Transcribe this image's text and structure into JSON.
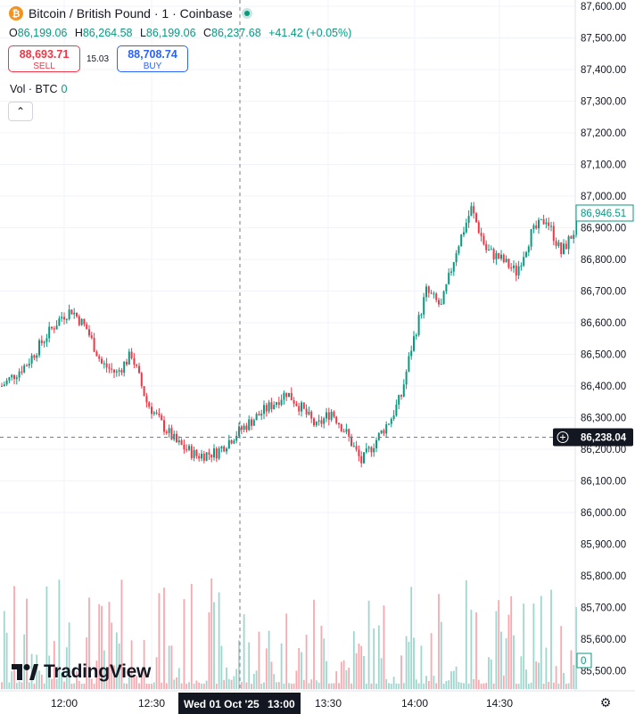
{
  "header": {
    "coin_glyph": "₿",
    "title": "Bitcoin / British Pound · 1 · Coinbase",
    "ohlc": [
      {
        "key": "O",
        "value": "86,199.06"
      },
      {
        "key": "H",
        "value": "86,264.58"
      },
      {
        "key": "L",
        "value": "86,199.06"
      },
      {
        "key": "C",
        "value": "86,237.68"
      }
    ],
    "change": "+41.42 (+0.05%)"
  },
  "trade": {
    "sell_price": "88,693.71",
    "sell_label": "SELL",
    "spread": "15.03",
    "buy_price": "88,708.74",
    "buy_label": "BUY"
  },
  "volume": {
    "label": "Vol · BTC",
    "value": "0",
    "axis_label": "0"
  },
  "logo": "TradingView",
  "crosshair_date": "Wed 01 Oct '25",
  "crosshair_time": "13:00",
  "colors": {
    "up": "#089981",
    "down": "#f23645",
    "up_vol": "#9fd6cd",
    "down_vol": "#f7a9af",
    "grid": "#f0f3fa",
    "axis_text": "#131722"
  },
  "chart_data": {
    "type": "candlestick",
    "y_ticks": [
      86000,
      86100,
      86200,
      86300,
      86400,
      86500,
      86600,
      86700,
      86800,
      86900,
      87000,
      87100,
      87200,
      87300,
      87400,
      87500,
      87600
    ],
    "y_tick_labels": [
      "86,000.00",
      "86,100.00",
      "86,200.00",
      "86,300.00",
      "86,400.00",
      "86,500.00",
      "86,600.00",
      "86,700.00",
      "86,800.00",
      "86,900.00",
      "87,000.00",
      "87,100.00",
      "87,200.00",
      "87,300.00",
      "87,400.00",
      "87,500.00",
      "87,600.00"
    ],
    "extra_y_labels": [
      "85,900.00",
      "85,800.00",
      "85,700.00",
      "85,600.00",
      "85,500.00"
    ],
    "x_tick_labels": [
      "12:00",
      "12:30",
      "13:30",
      "14:00",
      "14:30"
    ],
    "last_price": 86946.51,
    "last_price_label": "86,946.51",
    "crosshair_price": 86238.04,
    "crosshair_price_label": "86,238.04",
    "trend_control_points": [
      [
        0,
        86400
      ],
      [
        10,
        86470
      ],
      [
        18,
        86560
      ],
      [
        24,
        86620
      ],
      [
        28,
        86640
      ],
      [
        34,
        86580
      ],
      [
        40,
        86470
      ],
      [
        46,
        86440
      ],
      [
        52,
        86500
      ],
      [
        58,
        86350
      ],
      [
        64,
        86280
      ],
      [
        70,
        86220
      ],
      [
        78,
        86180
      ],
      [
        86,
        86190
      ],
      [
        94,
        86250
      ],
      [
        100,
        86290
      ],
      [
        108,
        86340
      ],
      [
        114,
        86380
      ],
      [
        120,
        86330
      ],
      [
        126,
        86270
      ],
      [
        132,
        86320
      ],
      [
        138,
        86250
      ],
      [
        144,
        86160
      ],
      [
        150,
        86230
      ],
      [
        156,
        86300
      ],
      [
        160,
        86370
      ],
      [
        164,
        86520
      ],
      [
        170,
        86700
      ],
      [
        176,
        86650
      ],
      [
        182,
        86830
      ],
      [
        188,
        86960
      ],
      [
        194,
        86830
      ],
      [
        200,
        86800
      ],
      [
        206,
        86760
      ],
      [
        212,
        86880
      ],
      [
        218,
        86930
      ],
      [
        224,
        86820
      ],
      [
        230,
        86900
      ]
    ]
  }
}
